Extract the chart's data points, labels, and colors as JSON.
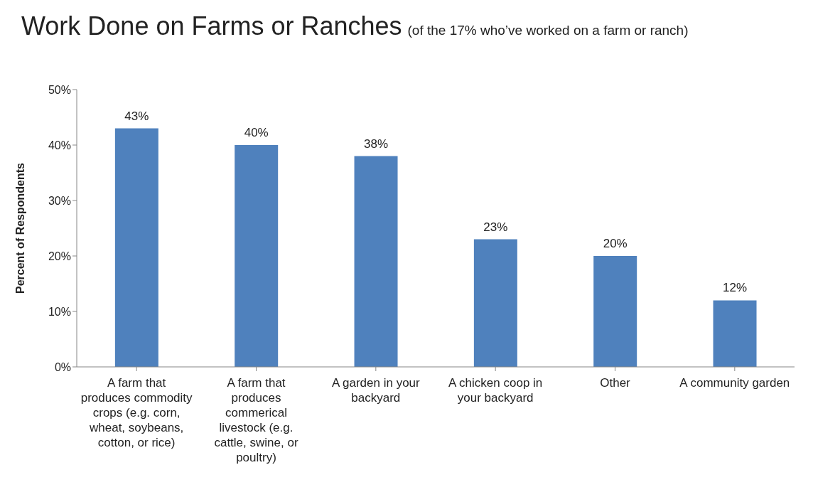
{
  "chart_data": {
    "type": "bar",
    "title": "Work Done on Farms or Ranches",
    "subtitle": "(of the 17% who’ve worked on a farm or ranch)",
    "ylabel": "Percent of Respondents",
    "categories": [
      "A farm that produces commodity crops (e.g. corn, wheat, soybeans, cotton, or rice)",
      "A farm that produces commerical livestock (e.g. cattle, swine, or poultry)",
      "A garden in your backyard",
      "A chicken coop in your backyard",
      "Other",
      "A community garden"
    ],
    "values": [
      43,
      40,
      38,
      23,
      20,
      12
    ],
    "value_labels": [
      "43%",
      "40%",
      "38%",
      "23%",
      "20%",
      "12%"
    ],
    "color": "#4f81bd",
    "ylim": [
      0,
      50
    ],
    "yticks": [
      {
        "value": 0,
        "label": "0%"
      },
      {
        "value": 10,
        "label": "10%"
      },
      {
        "value": 20,
        "label": "20%"
      },
      {
        "value": 30,
        "label": "30%"
      },
      {
        "value": 40,
        "label": "40%"
      },
      {
        "value": 50,
        "label": "50%"
      }
    ],
    "grid": false,
    "legend": false
  }
}
